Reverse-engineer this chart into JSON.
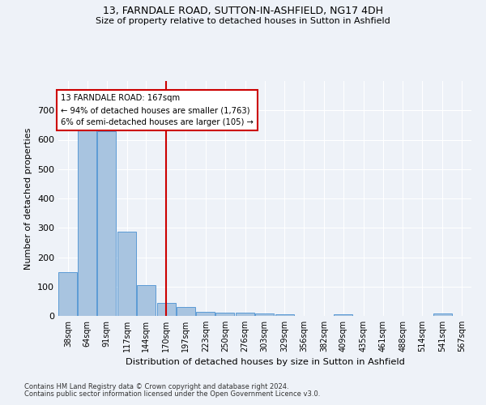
{
  "title": "13, FARNDALE ROAD, SUTTON-IN-ASHFIELD, NG17 4DH",
  "subtitle": "Size of property relative to detached houses in Sutton in Ashfield",
  "xlabel": "Distribution of detached houses by size in Sutton in Ashfield",
  "ylabel": "Number of detached properties",
  "footnote1": "Contains HM Land Registry data © Crown copyright and database right 2024.",
  "footnote2": "Contains public sector information licensed under the Open Government Licence v3.0.",
  "annotation_line1": "13 FARNDALE ROAD: 167sqm",
  "annotation_line2": "← 94% of detached houses are smaller (1,763)",
  "annotation_line3": "6% of semi-detached houses are larger (105) →",
  "bar_color": "#a8c4e0",
  "bar_edge_color": "#5b9bd5",
  "ref_line_color": "#cc0000",
  "ref_line_x": 170,
  "categories": [
    "38sqm",
    "64sqm",
    "91sqm",
    "117sqm",
    "144sqm",
    "170sqm",
    "197sqm",
    "223sqm",
    "250sqm",
    "276sqm",
    "303sqm",
    "329sqm",
    "356sqm",
    "382sqm",
    "409sqm",
    "435sqm",
    "461sqm",
    "488sqm",
    "514sqm",
    "541sqm",
    "567sqm"
  ],
  "bin_edges": [
    25,
    51,
    77,
    104,
    130,
    157,
    183,
    210,
    236,
    263,
    289,
    316,
    342,
    369,
    395,
    422,
    448,
    475,
    501,
    528,
    554,
    580
  ],
  "values": [
    148,
    631,
    629,
    286,
    104,
    43,
    30,
    13,
    10,
    10,
    9,
    5,
    0,
    0,
    6,
    0,
    0,
    0,
    0,
    7,
    0
  ],
  "ylim": [
    0,
    800
  ],
  "yticks": [
    0,
    100,
    200,
    300,
    400,
    500,
    600,
    700
  ],
  "background_color": "#eef2f8",
  "grid_color": "#ffffff"
}
